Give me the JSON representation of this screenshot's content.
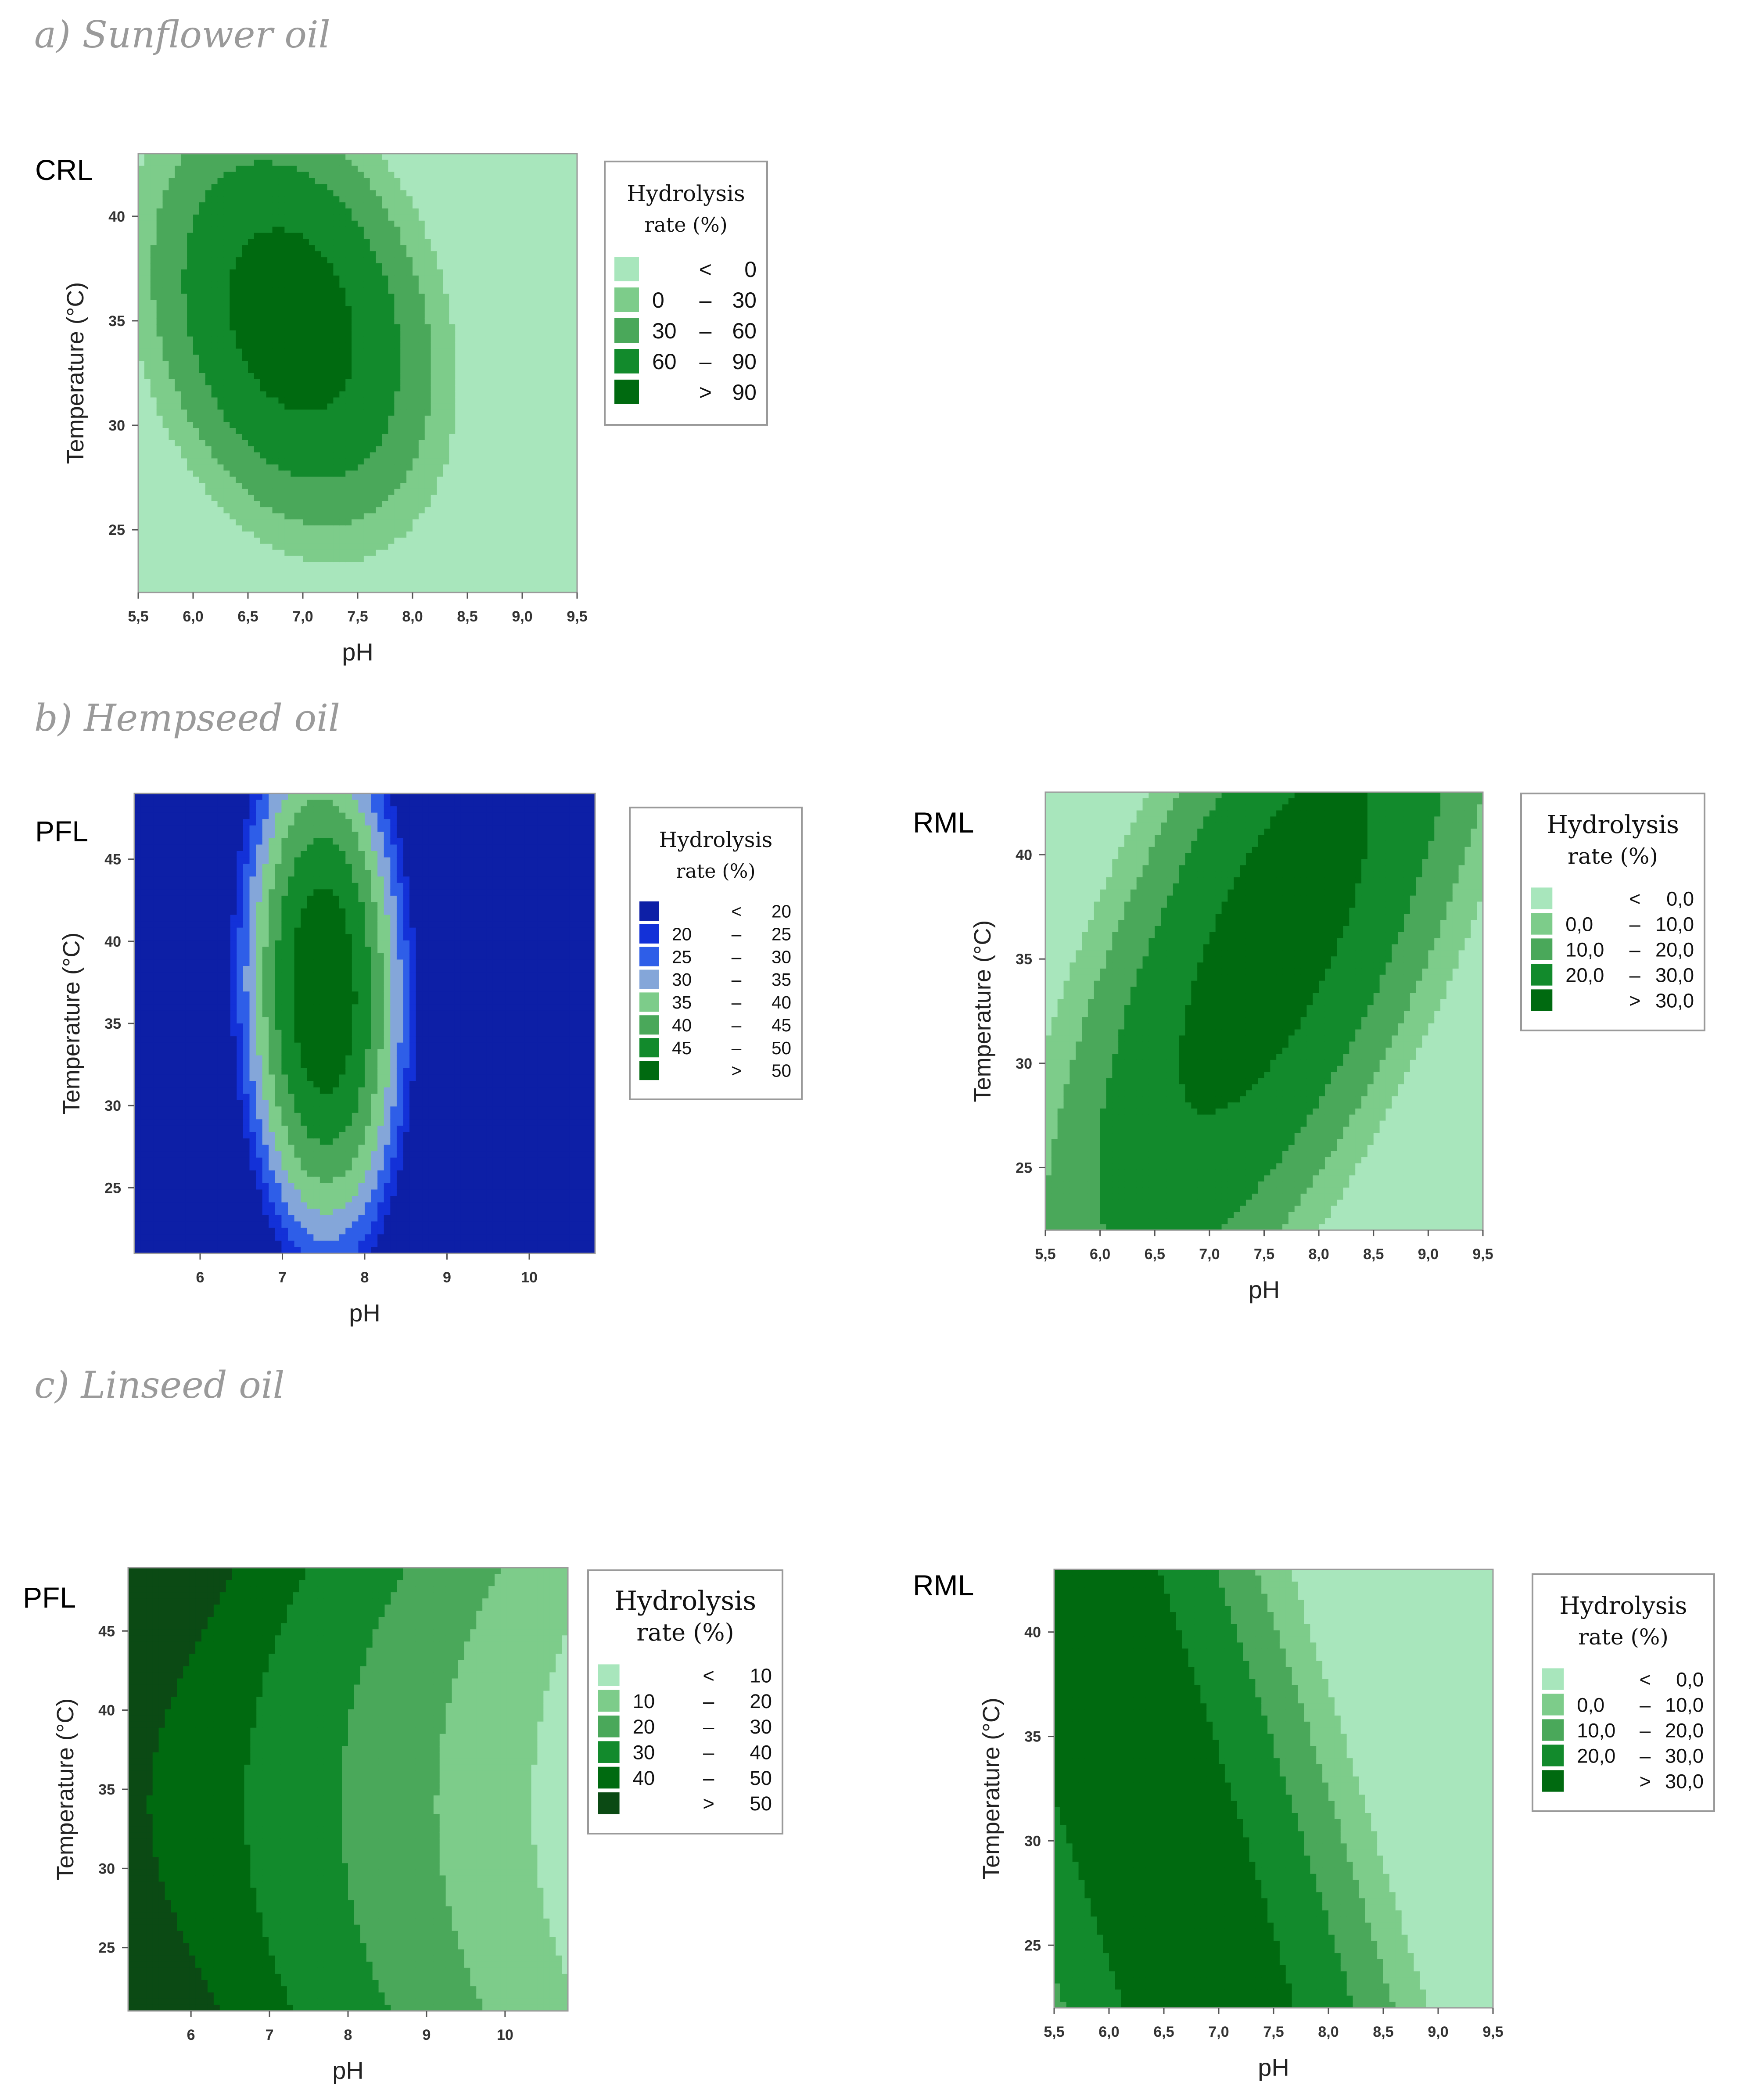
{
  "sections": [
    {
      "title": "a) Sunflower oil"
    },
    {
      "title": "b) Hempseed oil"
    },
    {
      "title": "c) Linseed oil"
    }
  ],
  "chart_data": [
    {
      "type": "contour",
      "panel": "CRL",
      "section": "a) Sunflower oil",
      "xlabel": "pH",
      "ylabel": "Temperature (°C)",
      "xlim": [
        5.5,
        9.5
      ],
      "ylim": [
        22,
        43
      ],
      "xticks": [
        "5,5",
        "6,0",
        "6,5",
        "7,0",
        "7,5",
        "8,0",
        "8,5",
        "9,0",
        "9,5"
      ],
      "xtick_values": [
        5.5,
        6.0,
        6.5,
        7.0,
        7.5,
        8.0,
        8.5,
        9.0,
        9.5
      ],
      "yticks": [
        "25",
        "30",
        "35",
        "40"
      ],
      "ytick_values": [
        25,
        30,
        35,
        40
      ],
      "legend_title": [
        "Hydrolysis",
        "rate (%)"
      ],
      "legend": [
        {
          "lo": "",
          "sep": "<",
          "hi": "0",
          "color": "#a8e6bc"
        },
        {
          "lo": "0",
          "sep": "–",
          "hi": "30",
          "color": "#7dcc8a"
        },
        {
          "lo": "30",
          "sep": "–",
          "hi": "60",
          "color": "#4aa85a"
        },
        {
          "lo": "60",
          "sep": "–",
          "hi": "90",
          "color": "#128a2c"
        },
        {
          "lo": "",
          "sep": ">",
          "hi": "90",
          "color": "#006a10"
        }
      ],
      "surface": {
        "kind": "ellipse",
        "peak": [
          6.9,
          35.0
        ],
        "value": 105,
        "sx": 0.78,
        "sy": 6.0,
        "rho": -0.25
      }
    },
    {
      "type": "contour",
      "panel": "PFL",
      "section": "b) Hempseed oil",
      "xlabel": "pH",
      "ylabel": "Temperature (°C)",
      "xlim": [
        5.2,
        10.8
      ],
      "ylim": [
        21,
        49
      ],
      "xticks": [
        "6",
        "7",
        "8",
        "9",
        "10"
      ],
      "xtick_values": [
        6,
        7,
        8,
        9,
        10
      ],
      "yticks": [
        "25",
        "30",
        "35",
        "40",
        "45"
      ],
      "ytick_values": [
        25,
        30,
        35,
        40,
        45
      ],
      "legend_title": [
        "Hydrolysis",
        "rate (%)"
      ],
      "legend": [
        {
          "lo": "",
          "sep": "<",
          "hi": "20",
          "color": "#0d1fa6"
        },
        {
          "lo": "20",
          "sep": "–",
          "hi": "25",
          "color": "#1331d8"
        },
        {
          "lo": "25",
          "sep": "–",
          "hi": "30",
          "color": "#2e5ee8"
        },
        {
          "lo": "30",
          "sep": "–",
          "hi": "35",
          "color": "#84a6d9"
        },
        {
          "lo": "35",
          "sep": "–",
          "hi": "40",
          "color": "#7dcc8a"
        },
        {
          "lo": "40",
          "sep": "–",
          "hi": "45",
          "color": "#4aa85a"
        },
        {
          "lo": "45",
          "sep": "–",
          "hi": "50",
          "color": "#128a2c"
        },
        {
          "lo": "",
          "sep": ">",
          "hi": "50",
          "color": "#006a10"
        }
      ],
      "surface": {
        "kind": "ellipse",
        "peak": [
          7.5,
          37.0
        ],
        "value": 54,
        "sx": 1.05,
        "sy": 17.0,
        "rho": -0.05
      }
    },
    {
      "type": "contour",
      "panel": "RML",
      "section": "b) Hempseed oil",
      "xlabel": "pH",
      "ylabel": "Temperature (°C)",
      "xlim": [
        5.5,
        9.5
      ],
      "ylim": [
        22,
        43
      ],
      "xticks": [
        "5,5",
        "6,0",
        "6,5",
        "7,0",
        "7,5",
        "8,0",
        "8,5",
        "9,0",
        "9,5"
      ],
      "xtick_values": [
        5.5,
        6.0,
        6.5,
        7.0,
        7.5,
        8.0,
        8.5,
        9.0,
        9.5
      ],
      "yticks": [
        "25",
        "30",
        "35",
        "40"
      ],
      "ytick_values": [
        25,
        30,
        35,
        40
      ],
      "legend_title": [
        "Hydrolysis",
        "rate (%)"
      ],
      "legend": [
        {
          "lo": "",
          "sep": "<",
          "hi": "0,0",
          "color": "#a8e6bc"
        },
        {
          "lo": "0,0",
          "sep": "–",
          "hi": "10,0",
          "color": "#7dcc8a"
        },
        {
          "lo": "10,0",
          "sep": "–",
          "hi": "20,0",
          "color": "#4aa85a"
        },
        {
          "lo": "20,0",
          "sep": "–",
          "hi": "30,0",
          "color": "#128a2c"
        },
        {
          "lo": "",
          "sep": ">",
          "hi": "30,0",
          "color": "#006a10"
        }
      ],
      "surface": {
        "kind": "ellipse",
        "peak": [
          7.6,
          36.0
        ],
        "value": 34,
        "sx": 1.65,
        "sy": 16.0,
        "rho": 0.72
      }
    },
    {
      "type": "contour",
      "panel": "PFL",
      "section": "c) Linseed oil",
      "xlabel": "pH",
      "ylabel": "Temperature (°C)",
      "xlim": [
        5.2,
        10.8
      ],
      "ylim": [
        21,
        49
      ],
      "xticks": [
        "6",
        "7",
        "8",
        "9",
        "10"
      ],
      "xtick_values": [
        6,
        7,
        8,
        9,
        10
      ],
      "yticks": [
        "25",
        "30",
        "35",
        "40",
        "45"
      ],
      "ytick_values": [
        25,
        30,
        35,
        40,
        45
      ],
      "legend_title": [
        "Hydrolysis",
        "rate (%)"
      ],
      "legend": [
        {
          "lo": "",
          "sep": "<",
          "hi": "10",
          "color": "#a8e6bc"
        },
        {
          "lo": "10",
          "sep": "–",
          "hi": "20",
          "color": "#7dcc8a"
        },
        {
          "lo": "20",
          "sep": "–",
          "hi": "30",
          "color": "#4aa85a"
        },
        {
          "lo": "30",
          "sep": "–",
          "hi": "40",
          "color": "#128a2c"
        },
        {
          "lo": "40",
          "sep": "–",
          "hi": "50",
          "color": "#006a10"
        },
        {
          "lo": "",
          "sep": ">",
          "hi": "50",
          "color": "#0b4a14"
        }
      ],
      "surface": {
        "kind": "saddle",
        "min": [
          11.2,
          34.0
        ],
        "base": 3,
        "a": 8.2,
        "b": 0.03
      }
    },
    {
      "type": "contour",
      "panel": "RML",
      "section": "c) Linseed oil",
      "xlabel": "pH",
      "ylabel": "Temperature (°C)",
      "xlim": [
        5.5,
        9.5
      ],
      "ylim": [
        22,
        43
      ],
      "xticks": [
        "5,5",
        "6,0",
        "6,5",
        "7,0",
        "7,5",
        "8,0",
        "8,5",
        "9,0",
        "9,5"
      ],
      "xtick_values": [
        5.5,
        6.0,
        6.5,
        7.0,
        7.5,
        8.0,
        8.5,
        9.0,
        9.5
      ],
      "yticks": [
        "25",
        "30",
        "35",
        "40"
      ],
      "ytick_values": [
        25,
        30,
        35,
        40
      ],
      "legend_title": [
        "Hydrolysis",
        "rate (%)"
      ],
      "legend": [
        {
          "lo": "",
          "sep": "<",
          "hi": "0,0",
          "color": "#a8e6bc"
        },
        {
          "lo": "0,0",
          "sep": "–",
          "hi": "10,0",
          "color": "#7dcc8a"
        },
        {
          "lo": "10,0",
          "sep": "–",
          "hi": "20,0",
          "color": "#4aa85a"
        },
        {
          "lo": "20,0",
          "sep": "–",
          "hi": "30,0",
          "color": "#128a2c"
        },
        {
          "lo": "",
          "sep": ">",
          "hi": "30,0",
          "color": "#006a10"
        }
      ],
      "surface": {
        "kind": "ridge",
        "peak": [
          6.2,
          34.0
        ],
        "value": 36,
        "a": 9.0,
        "skew": -0.06,
        "b": 0.004
      }
    }
  ]
}
